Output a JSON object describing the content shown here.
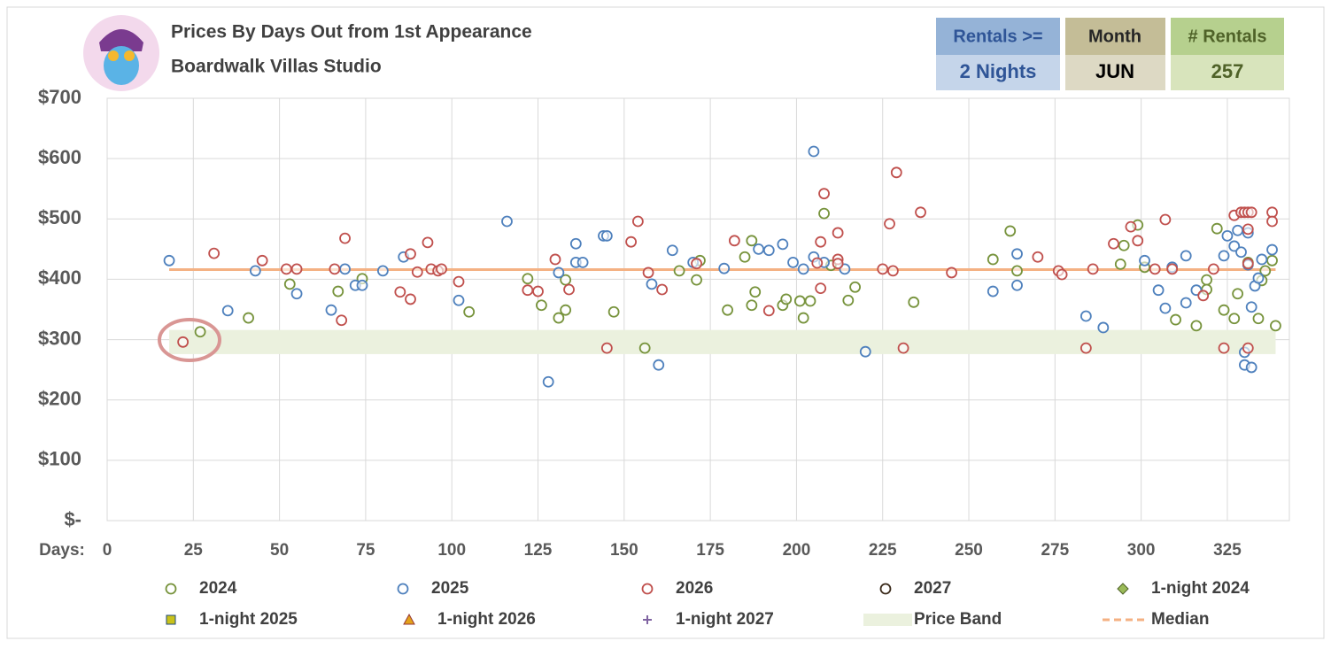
{
  "header": {
    "title": "Prices By Days Out from 1st Appearance",
    "subtitle": "Boardwalk Villas Studio",
    "boxes": [
      {
        "label": "Rentals >=",
        "value": "2 Nights"
      },
      {
        "label": "Month",
        "value": "JUN"
      },
      {
        "label": "# Rentals",
        "value": "257"
      }
    ]
  },
  "chart_data": {
    "type": "scatter",
    "xlabel": "Days:",
    "xlim": [
      0,
      343
    ],
    "ylim": [
      0,
      700
    ],
    "xticks": [
      0,
      25,
      50,
      75,
      100,
      125,
      150,
      175,
      200,
      225,
      250,
      275,
      300,
      325
    ],
    "yticks": [
      {
        "value": 0,
        "label": "$-"
      },
      {
        "value": 100,
        "label": "$100"
      },
      {
        "value": 200,
        "label": "$200"
      },
      {
        "value": 300,
        "label": "$300"
      },
      {
        "value": 400,
        "label": "$400"
      },
      {
        "value": 500,
        "label": "$500"
      },
      {
        "value": 600,
        "label": "$600"
      },
      {
        "value": 700,
        "label": "$700"
      }
    ],
    "grid": true,
    "legend": "bottom",
    "series": [
      {
        "name": "2024",
        "color": "#77933c",
        "marker": "circle",
        "x": [
          27,
          41,
          53,
          67,
          74,
          105,
          122,
          126,
          131,
          133,
          133,
          147,
          156,
          166,
          171,
          172,
          180,
          185,
          187,
          187,
          188,
          196,
          197,
          201,
          202,
          204,
          208,
          210,
          215,
          217,
          234,
          257,
          262,
          264,
          294,
          299,
          295,
          301,
          310,
          316,
          319,
          319,
          322,
          324,
          327,
          328,
          331,
          334,
          335,
          336,
          338,
          339
        ],
        "values": [
          313,
          336,
          392,
          380,
          401,
          346,
          401,
          357,
          336,
          399,
          349,
          346,
          286,
          414,
          399,
          431,
          349,
          437,
          464,
          357,
          379,
          357,
          367,
          364,
          336,
          364,
          509,
          423,
          365,
          387,
          362,
          433,
          480,
          414,
          425,
          490,
          456,
          420,
          333,
          323,
          399,
          383,
          484,
          349,
          335,
          376,
          428,
          335,
          398,
          414,
          431,
          323
        ]
      },
      {
        "name": "2025",
        "color": "#4f81bd",
        "marker": "circle",
        "x": [
          18,
          35,
          43,
          55,
          65,
          69,
          72,
          74,
          80,
          86,
          102,
          116,
          128,
          131,
          136,
          136,
          138,
          144,
          145,
          158,
          160,
          164,
          170,
          179,
          189,
          192,
          196,
          199,
          202,
          205,
          205,
          208,
          214,
          220,
          257,
          264,
          264,
          284,
          289,
          301,
          305,
          307,
          309,
          313,
          313,
          316,
          324,
          325,
          327,
          328,
          329,
          330,
          330,
          331,
          331,
          332,
          332,
          333,
          334,
          335,
          338
        ],
        "values": [
          431,
          348,
          414,
          376,
          349,
          417,
          390,
          390,
          414,
          437,
          365,
          496,
          230,
          411,
          459,
          428,
          428,
          472,
          472,
          392,
          258,
          448,
          428,
          418,
          450,
          448,
          458,
          428,
          417,
          612,
          437,
          428,
          417,
          280,
          380,
          442,
          390,
          339,
          320,
          431,
          382,
          352,
          420,
          439,
          361,
          382,
          439,
          472,
          455,
          481,
          445,
          279,
          258,
          424,
          477,
          354,
          254,
          389,
          402,
          433,
          449
        ]
      },
      {
        "name": "2026",
        "color": "#c0504d",
        "marker": "circle",
        "x": [
          22,
          31,
          45,
          52,
          55,
          66,
          68,
          69,
          85,
          88,
          88,
          90,
          93,
          94,
          96,
          97,
          102,
          122,
          125,
          130,
          134,
          145,
          152,
          154,
          157,
          161,
          171,
          182,
          192,
          206,
          207,
          207,
          208,
          212,
          212,
          212,
          225,
          227,
          228,
          229,
          231,
          236,
          245,
          270,
          276,
          277,
          284,
          286,
          292,
          297,
          299,
          304,
          307,
          309,
          318,
          321,
          324,
          327,
          329,
          330,
          331,
          331,
          331,
          331,
          332,
          338,
          338
        ],
        "values": [
          296,
          443,
          431,
          417,
          417,
          417,
          332,
          468,
          379,
          367,
          442,
          412,
          461,
          417,
          414,
          417,
          396,
          382,
          380,
          433,
          383,
          286,
          462,
          496,
          411,
          383,
          426,
          464,
          348,
          427,
          385,
          462,
          542,
          477,
          433,
          426,
          417,
          492,
          414,
          577,
          286,
          511,
          411,
          437,
          414,
          408,
          286,
          417,
          459,
          487,
          464,
          417,
          499,
          417,
          373,
          417,
          286,
          506,
          511,
          511,
          511,
          483,
          286,
          426,
          511,
          511,
          496
        ]
      },
      {
        "name": "2027",
        "color": "#3a2a1a",
        "marker": "circle",
        "x": [],
        "values": []
      },
      {
        "name": "1-night 2024",
        "color": "#9bbb59",
        "marker": "diamond",
        "x": [],
        "values": []
      },
      {
        "name": "1-night 2025",
        "color": "#c9c21a",
        "marker": "square",
        "x": [],
        "values": []
      },
      {
        "name": "1-night 2026",
        "color": "#e3a21a",
        "marker": "triangle",
        "x": [],
        "values": []
      },
      {
        "name": "1-night 2027",
        "color": "#8064a2",
        "marker": "plus",
        "x": [],
        "values": []
      },
      {
        "name": "Price Band",
        "color": "#ebf1de",
        "marker": "band",
        "x": [
          18,
          339
        ],
        "low": 276,
        "high": 316
      },
      {
        "name": "Median",
        "color": "#f4b183",
        "marker": "dash",
        "x": [
          18,
          339
        ],
        "values": [
          416,
          416
        ]
      }
    ]
  }
}
